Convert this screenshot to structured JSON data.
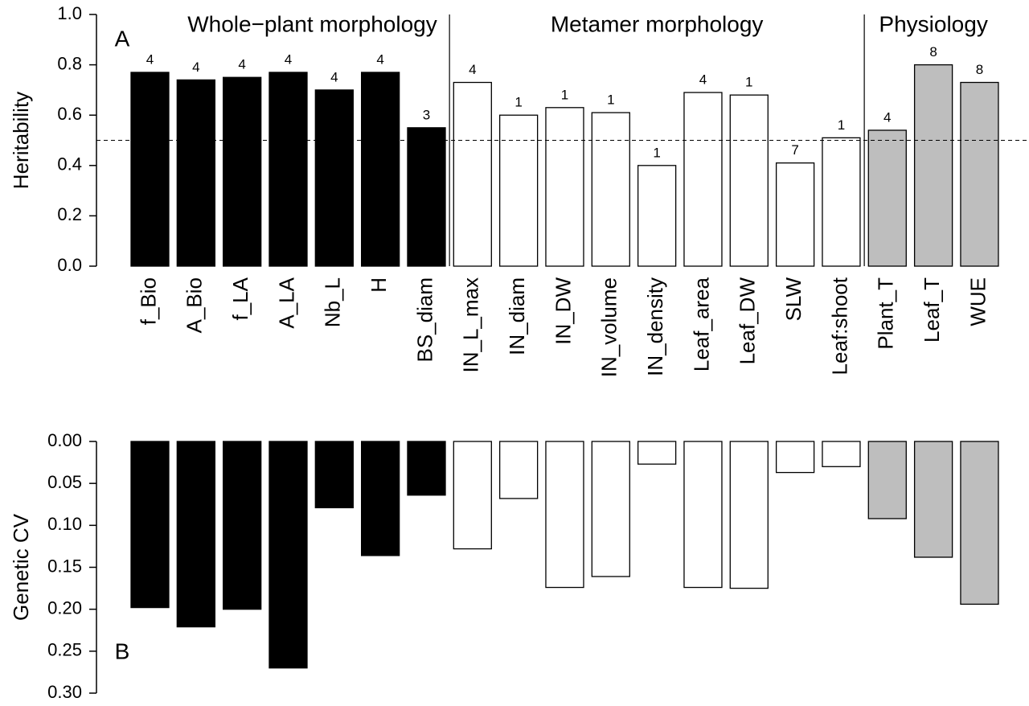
{
  "chart_data": [
    {
      "type": "bar",
      "panel": "A",
      "ylabel": "Heritability",
      "groups": [
        "Whole−plant morphology",
        "Metamer morphology",
        "Physiology"
      ],
      "categories": [
        "f_Bio",
        "A_Bio",
        "f_LA",
        "A_LA",
        "Nb_L",
        "H",
        "BS_diam",
        "IN_L_max",
        "IN_diam",
        "IN_DW",
        "IN_volume",
        "IN_density",
        "Leaf_area",
        "Leaf_DW",
        "SLW",
        "Leaf:shoot",
        "Plant_T",
        "Leaf_T",
        "WUE"
      ],
      "values": [
        0.77,
        0.74,
        0.75,
        0.77,
        0.7,
        0.77,
        0.55,
        0.73,
        0.6,
        0.63,
        0.61,
        0.4,
        0.69,
        0.68,
        0.41,
        0.51,
        0.54,
        0.8,
        0.73
      ],
      "bar_labels": [
        4,
        4,
        4,
        4,
        4,
        4,
        3,
        4,
        1,
        1,
        1,
        1,
        4,
        1,
        7,
        1,
        4,
        8,
        8
      ],
      "colors": [
        "#000000",
        "#000000",
        "#000000",
        "#000000",
        "#000000",
        "#000000",
        "#000000",
        "#ffffff",
        "#ffffff",
        "#ffffff",
        "#ffffff",
        "#ffffff",
        "#ffffff",
        "#ffffff",
        "#ffffff",
        "#ffffff",
        "#bebebe",
        "#bebebe",
        "#bebebe"
      ],
      "hline": 0.5,
      "ylim": [
        0,
        1
      ],
      "yticks": [
        {
          "value": 0,
          "label": "0.0"
        },
        {
          "value": 0.2,
          "label": "0.2"
        },
        {
          "value": 0.4,
          "label": "0.4"
        },
        {
          "value": 0.6,
          "label": "0.6"
        },
        {
          "value": 0.8,
          "label": "0.8"
        },
        {
          "value": 1,
          "label": "1.0"
        }
      ]
    },
    {
      "type": "bar",
      "panel": "B",
      "ylabel": "Genetic CV",
      "inverted": true,
      "values": [
        0.198,
        0.221,
        0.2,
        0.27,
        0.079,
        0.136,
        0.064,
        0.128,
        0.068,
        0.174,
        0.161,
        0.027,
        0.174,
        0.175,
        0.037,
        0.03,
        0.092,
        0.138,
        0.194
      ],
      "colors": [
        "#000000",
        "#000000",
        "#000000",
        "#000000",
        "#000000",
        "#000000",
        "#000000",
        "#ffffff",
        "#ffffff",
        "#ffffff",
        "#ffffff",
        "#ffffff",
        "#ffffff",
        "#ffffff",
        "#ffffff",
        "#ffffff",
        "#bebebe",
        "#bebebe",
        "#bebebe"
      ],
      "ylim": [
        0,
        0.3
      ],
      "yticks": [
        {
          "value": 0,
          "label": "0.00"
        },
        {
          "value": 0.05,
          "label": "0.05"
        },
        {
          "value": 0.1,
          "label": "0.10"
        },
        {
          "value": 0.15,
          "label": "0.15"
        },
        {
          "value": 0.2,
          "label": "0.20"
        },
        {
          "value": 0.25,
          "label": "0.25"
        },
        {
          "value": 0.3,
          "label": "0.30"
        }
      ]
    }
  ]
}
